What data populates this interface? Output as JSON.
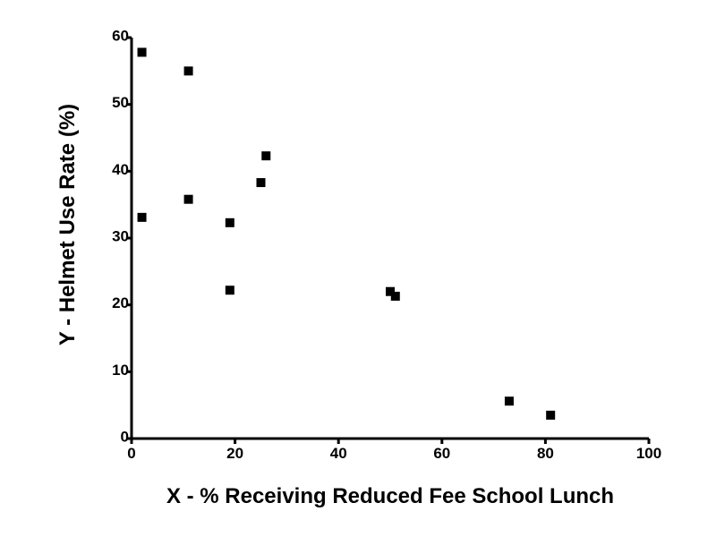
{
  "chart_data": {
    "type": "scatter",
    "xlabel": "X - % Receiving Reduced Fee School Lunch",
    "ylabel": "Y - Helmet Use Rate (%)",
    "xlim": [
      0,
      100
    ],
    "ylim": [
      0,
      60
    ],
    "xticks": [
      0,
      20,
      40,
      60,
      80,
      100
    ],
    "yticks": [
      0,
      10,
      20,
      30,
      40,
      50,
      60
    ],
    "grid": false,
    "marker": "square",
    "marker_color": "#000000",
    "series": [
      {
        "points": [
          {
            "x": 2,
            "y": 57.8
          },
          {
            "x": 11,
            "y": 55.0
          },
          {
            "x": 26,
            "y": 42.3
          },
          {
            "x": 25,
            "y": 38.3
          },
          {
            "x": 11,
            "y": 35.8
          },
          {
            "x": 2,
            "y": 33.1
          },
          {
            "x": 19,
            "y": 32.3
          },
          {
            "x": 19,
            "y": 22.2
          },
          {
            "x": 50,
            "y": 22.0
          },
          {
            "x": 51,
            "y": 21.3
          },
          {
            "x": 73,
            "y": 5.6
          },
          {
            "x": 81,
            "y": 3.5
          }
        ]
      }
    ]
  }
}
